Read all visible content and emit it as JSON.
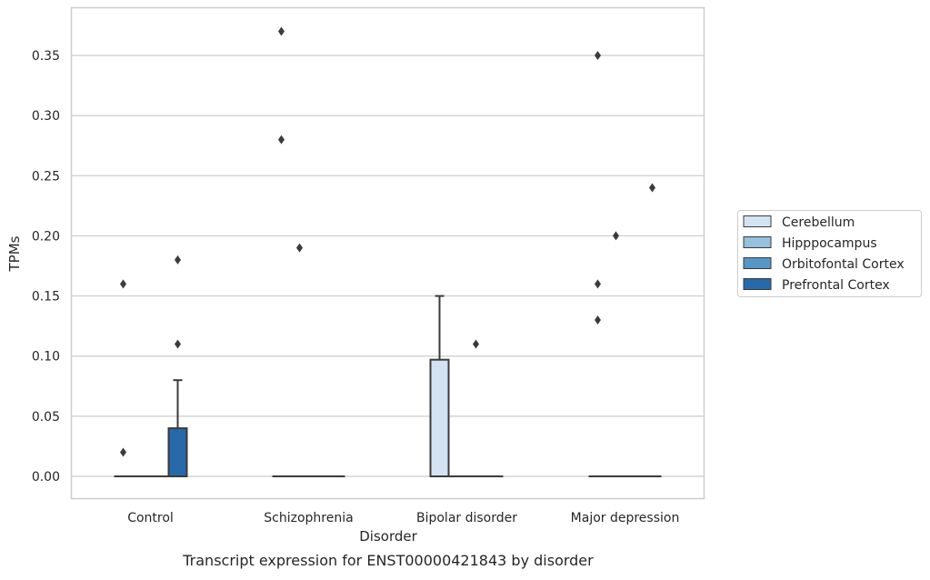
{
  "chart_data": {
    "type": "box",
    "title": "",
    "caption": "Transcript expression for ENST00000421843 by disorder",
    "xlabel": "Disorder",
    "ylabel": "TPMs",
    "ylim": [
      -0.018,
      0.388
    ],
    "yticks": [
      0.0,
      0.05,
      0.1,
      0.15,
      0.2,
      0.25,
      0.3,
      0.35
    ],
    "ytick_labels": [
      "0.00",
      "0.05",
      "0.10",
      "0.15",
      "0.20",
      "0.25",
      "0.30",
      "0.35"
    ],
    "grid": "horizontal",
    "legend_position": "right",
    "categories": [
      "Control",
      "Schizophrenia",
      "Bipolar disorder",
      "Major depression"
    ],
    "series": [
      {
        "name": "Cerebellum",
        "color": "#d4e3f2",
        "boxes": [
          {
            "q1": 0,
            "median": 0,
            "q3": 0,
            "whisker_low": 0,
            "whisker_high": 0,
            "outliers": [
              0.16,
              0.02
            ]
          },
          {
            "q1": 0,
            "median": 0,
            "q3": 0,
            "whisker_low": 0,
            "whisker_high": 0,
            "outliers": [
              0.37,
              0.28
            ]
          },
          {
            "q1": 0,
            "median": 0,
            "q3": 0.097,
            "whisker_low": 0,
            "whisker_high": 0.15,
            "outliers": []
          },
          {
            "q1": 0,
            "median": 0,
            "q3": 0,
            "whisker_low": 0,
            "whisker_high": 0,
            "outliers": [
              0.35,
              0.16,
              0.13
            ]
          }
        ]
      },
      {
        "name": "Hipppocampus",
        "color": "#97c0dd",
        "boxes": [
          {
            "q1": 0,
            "median": 0,
            "q3": 0,
            "whisker_low": 0,
            "whisker_high": 0,
            "outliers": []
          },
          {
            "q1": 0,
            "median": 0,
            "q3": 0,
            "whisker_low": 0,
            "whisker_high": 0,
            "outliers": [
              0.19
            ]
          },
          {
            "q1": 0,
            "median": 0,
            "q3": 0,
            "whisker_low": 0,
            "whisker_high": 0,
            "outliers": []
          },
          {
            "q1": 0,
            "median": 0,
            "q3": 0,
            "whisker_low": 0,
            "whisker_high": 0,
            "outliers": [
              0.2
            ]
          }
        ]
      },
      {
        "name": "Orbitofontal Cortex",
        "color": "#5796c5",
        "boxes": [
          {
            "q1": 0,
            "median": 0,
            "q3": 0,
            "whisker_low": 0,
            "whisker_high": 0,
            "outliers": []
          },
          {
            "q1": 0,
            "median": 0,
            "q3": 0,
            "whisker_low": 0,
            "whisker_high": 0,
            "outliers": []
          },
          {
            "q1": 0,
            "median": 0,
            "q3": 0,
            "whisker_low": 0,
            "whisker_high": 0,
            "outliers": [
              0.11
            ]
          },
          {
            "q1": 0,
            "median": 0,
            "q3": 0,
            "whisker_low": 0,
            "whisker_high": 0,
            "outliers": []
          }
        ]
      },
      {
        "name": "Prefrontal Cortex",
        "color": "#2969a9",
        "boxes": [
          {
            "q1": 0,
            "median": 0,
            "q3": 0.04,
            "whisker_low": 0,
            "whisker_high": 0.08,
            "outliers": [
              0.18,
              0.11
            ]
          },
          {
            "q1": 0,
            "median": 0,
            "q3": 0,
            "whisker_low": 0,
            "whisker_high": 0,
            "outliers": []
          },
          {
            "q1": 0,
            "median": 0,
            "q3": 0,
            "whisker_low": 0,
            "whisker_high": 0,
            "outliers": []
          },
          {
            "q1": 0,
            "median": 0,
            "q3": 0,
            "whisker_low": 0,
            "whisker_high": 0,
            "outliers": [
              0.24
            ]
          }
        ]
      }
    ],
    "colors": {
      "grid": "#cccccc",
      "frame": "#cccccc",
      "stroke": "#3b3b3b",
      "text": "#262626"
    }
  }
}
